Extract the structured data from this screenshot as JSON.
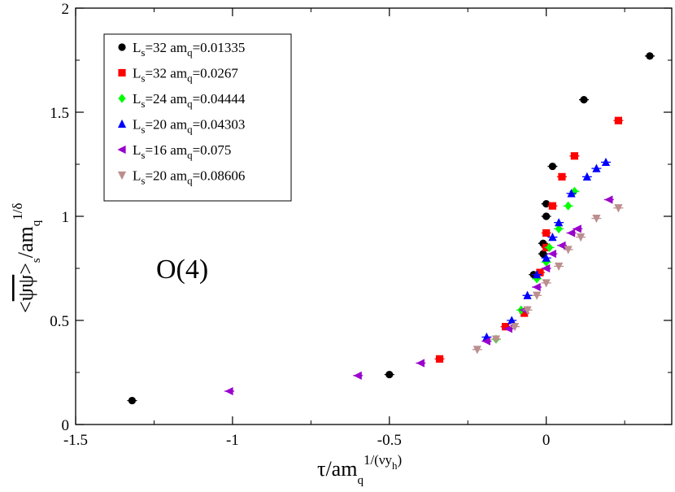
{
  "chart_data": {
    "type": "scatter",
    "title": "",
    "xlabel": {
      "base": "τ/am",
      "sub": "q",
      "sup": "1/(νy",
      "supsub": "h",
      "supend": ")"
    },
    "ylabel": {
      "bar": "ψψ",
      "prefix": "<",
      "suffix": ">",
      "sub": "s",
      "mid": "/am",
      "sub2": "q",
      "sup": "1/δ"
    },
    "xlim": [
      -1.5,
      0.4
    ],
    "ylim": [
      0,
      2
    ],
    "xticks": [
      -1.5,
      -1,
      -0.5,
      0
    ],
    "xtick_labels": [
      "-1.5",
      "-1",
      "-0.5",
      "0"
    ],
    "yticks": [
      0,
      0.5,
      1,
      1.5,
      2
    ],
    "ytick_labels": [
      "0",
      "0.5",
      "1",
      "1.5",
      "2"
    ],
    "annotation": "O(4)",
    "legend_position": "top-left",
    "series": [
      {
        "name": {
          "L": "L",
          "sub": "s",
          "rest": "=32  am",
          "sub2": "q",
          "val": "=0.01335"
        },
        "marker": "circle",
        "color": "#000000",
        "points": [
          [
            -1.32,
            0.115
          ],
          [
            -0.5,
            0.24
          ],
          [
            -0.04,
            0.72
          ],
          [
            -0.01,
            0.82
          ],
          [
            -0.01,
            0.87
          ],
          [
            0.0,
            1.0
          ],
          [
            0.0,
            1.06
          ],
          [
            0.02,
            1.24
          ],
          [
            0.12,
            1.56
          ],
          [
            0.33,
            1.77
          ]
        ]
      },
      {
        "name": {
          "L": "L",
          "sub": "s",
          "rest": "=32  am",
          "sub2": "q",
          "val": "=0.0267"
        },
        "marker": "square",
        "color": "#ff0000",
        "points": [
          [
            -0.34,
            0.315
          ],
          [
            -0.13,
            0.47
          ],
          [
            -0.07,
            0.535
          ],
          [
            -0.02,
            0.73
          ],
          [
            0.0,
            0.85
          ],
          [
            0.0,
            0.92
          ],
          [
            0.02,
            1.05
          ],
          [
            0.05,
            1.19
          ],
          [
            0.09,
            1.29
          ],
          [
            0.23,
            1.46
          ]
        ]
      },
      {
        "name": {
          "L": "L",
          "sub": "s",
          "rest": "=24  am",
          "sub2": "q",
          "val": "=0.04444"
        },
        "marker": "diamond",
        "color": "#00ff00",
        "points": [
          [
            -0.16,
            0.41
          ],
          [
            -0.08,
            0.55
          ],
          [
            -0.03,
            0.7
          ],
          [
            0.0,
            0.78
          ],
          [
            0.01,
            0.85
          ],
          [
            0.04,
            0.94
          ],
          [
            0.07,
            1.05
          ],
          [
            0.09,
            1.12
          ]
        ]
      },
      {
        "name": {
          "L": "L",
          "sub": "s",
          "rest": "=20  am",
          "sub2": "q",
          "val": "=0.04303"
        },
        "marker": "triangle-up",
        "color": "#0000ff",
        "points": [
          [
            -0.19,
            0.42
          ],
          [
            -0.11,
            0.5
          ],
          [
            -0.06,
            0.62
          ],
          [
            -0.03,
            0.72
          ],
          [
            0.0,
            0.8
          ],
          [
            0.02,
            0.9
          ],
          [
            0.04,
            0.97
          ],
          [
            0.08,
            1.11
          ],
          [
            0.13,
            1.19
          ],
          [
            0.16,
            1.23
          ],
          [
            0.19,
            1.26
          ]
        ]
      },
      {
        "name": {
          "L": "L",
          "sub": "s",
          "rest": "=16  am",
          "sub2": "q",
          "val": "=0.075"
        },
        "marker": "triangle-left",
        "color": "#9900cc",
        "points": [
          [
            -1.01,
            0.16
          ],
          [
            -0.6,
            0.235
          ],
          [
            -0.4,
            0.295
          ],
          [
            -0.19,
            0.4
          ],
          [
            -0.12,
            0.46
          ],
          [
            -0.07,
            0.55
          ],
          [
            -0.03,
            0.66
          ],
          [
            0.0,
            0.75
          ],
          [
            0.02,
            0.82
          ],
          [
            0.05,
            0.86
          ],
          [
            0.08,
            0.92
          ],
          [
            0.1,
            0.94
          ],
          [
            0.2,
            1.08
          ]
        ]
      },
      {
        "name": {
          "L": "L",
          "sub": "s",
          "rest": "=20  am",
          "sub2": "q",
          "val": "=0.08606"
        },
        "marker": "triangle-down",
        "color": "#bc8f8f",
        "points": [
          [
            -0.22,
            0.36
          ],
          [
            -0.16,
            0.41
          ],
          [
            -0.1,
            0.47
          ],
          [
            -0.06,
            0.55
          ],
          [
            -0.03,
            0.62
          ],
          [
            0.0,
            0.68
          ],
          [
            0.04,
            0.76
          ],
          [
            0.07,
            0.84
          ],
          [
            0.11,
            0.9
          ],
          [
            0.16,
            0.99
          ],
          [
            0.23,
            1.04
          ]
        ]
      }
    ]
  }
}
